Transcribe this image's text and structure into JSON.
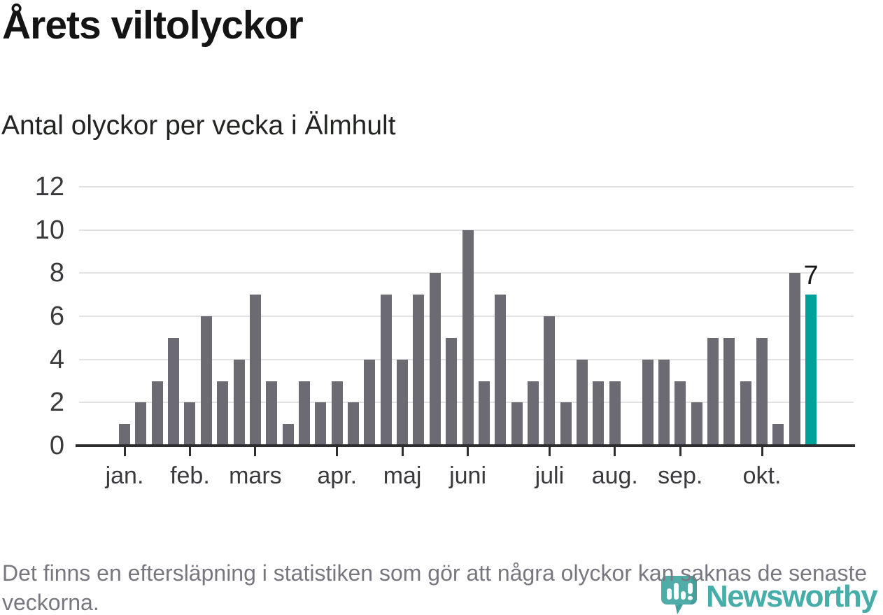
{
  "header": {
    "title": "Årets viltolyckor",
    "subtitle": "Antal olyckor per vecka i Älmhult"
  },
  "chart_data": {
    "type": "bar",
    "title": "Årets viltolyckor",
    "subtitle": "Antal olyckor per vecka i Älmhult",
    "x_unit": "vecka",
    "n_weeks": 43,
    "values": [
      1,
      2,
      3,
      5,
      2,
      6,
      3,
      4,
      7,
      3,
      1,
      3,
      2,
      3,
      2,
      4,
      7,
      4,
      7,
      8,
      5,
      10,
      3,
      7,
      2,
      3,
      6,
      2,
      4,
      3,
      3,
      0,
      4,
      4,
      3,
      2,
      5,
      5,
      3,
      5,
      1,
      8,
      7
    ],
    "month_ticks": [
      {
        "label": "jan.",
        "week": 1
      },
      {
        "label": "feb.",
        "week": 5
      },
      {
        "label": "mars",
        "week": 9
      },
      {
        "label": "apr.",
        "week": 14
      },
      {
        "label": "maj",
        "week": 18
      },
      {
        "label": "juni",
        "week": 22
      },
      {
        "label": "juli",
        "week": 27
      },
      {
        "label": "aug.",
        "week": 31
      },
      {
        "label": "sep.",
        "week": 35
      },
      {
        "label": "okt.",
        "week": 40
      }
    ],
    "y_ticks": [
      0,
      2,
      4,
      6,
      8,
      10,
      12
    ],
    "ylim": [
      0,
      12
    ],
    "grid": "horizontal-only",
    "legend": "none",
    "bar_color": "#6C6B73",
    "highlight": {
      "week": 43,
      "value": 7,
      "label": "7",
      "color": "#00A19A"
    }
  },
  "footer": {
    "note": "Det finns en eftersläpning i statistiken som gör att några olyckor kan saknas de senaste veckorna."
  },
  "logo": {
    "name": "Newsworthy",
    "icon": "newsworthy-speech-bubble-bar-chart-icon",
    "color": "#3BA8A3"
  }
}
